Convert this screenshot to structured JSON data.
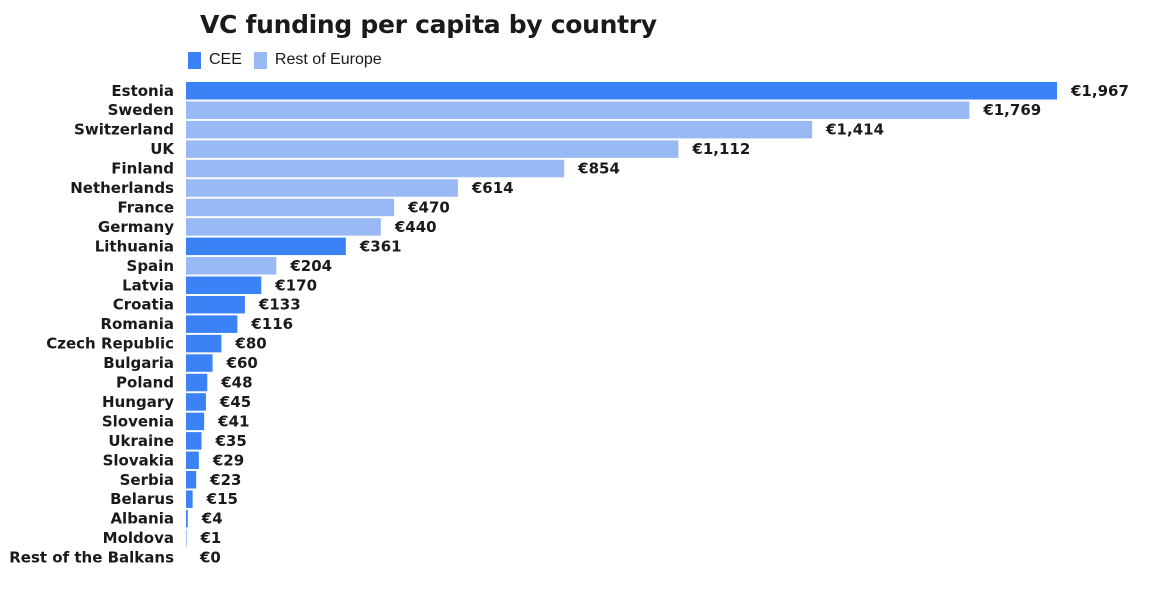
{
  "colors": {
    "CEE": "#3b82f6",
    "Rest of Europe": "#99b9f5"
  },
  "legend": [
    {
      "name": "CEE",
      "label": "CEE"
    },
    {
      "name": "Rest of Europe",
      "label": "Rest of Europe"
    }
  ],
  "chart_data": {
    "type": "bar",
    "orientation": "horizontal",
    "title": "VC funding per capita by country",
    "xlabel": "",
    "ylabel": "",
    "xlim": [
      0,
      1967
    ],
    "grid": false,
    "legend_position": "top-left",
    "categories": [
      "Estonia",
      "Sweden",
      "Switzerland",
      "UK",
      "Finland",
      "Netherlands",
      "France",
      "Germany",
      "Lithuania",
      "Spain",
      "Latvia",
      "Croatia",
      "Romania",
      "Czech Republic",
      "Bulgaria",
      "Poland",
      "Hungary",
      "Slovenia",
      "Ukraine",
      "Slovakia",
      "Serbia",
      "Belarus",
      "Albania",
      "Moldova",
      "Rest of the Balkans"
    ],
    "values": [
      1967,
      1769,
      1414,
      1112,
      854,
      614,
      470,
      440,
      361,
      204,
      170,
      133,
      116,
      80,
      60,
      48,
      45,
      41,
      35,
      29,
      23,
      15,
      4,
      1,
      0
    ],
    "value_labels": [
      "€1,967",
      "€1,769",
      "€1,414",
      "€1,112",
      "€854",
      "€614",
      "€470",
      "€440",
      "€361",
      "€204",
      "€170",
      "€133",
      "€116",
      "€80",
      "€60",
      "€48",
      "€45",
      "€41",
      "€35",
      "€29",
      "€23",
      "€15",
      "€4",
      "€1",
      "€0"
    ],
    "groups": [
      "CEE",
      "Rest of Europe",
      "Rest of Europe",
      "Rest of Europe",
      "Rest of Europe",
      "Rest of Europe",
      "Rest of Europe",
      "Rest of Europe",
      "CEE",
      "Rest of Europe",
      "CEE",
      "CEE",
      "CEE",
      "CEE",
      "CEE",
      "CEE",
      "CEE",
      "CEE",
      "CEE",
      "CEE",
      "CEE",
      "CEE",
      "CEE",
      "CEE",
      "CEE"
    ]
  }
}
